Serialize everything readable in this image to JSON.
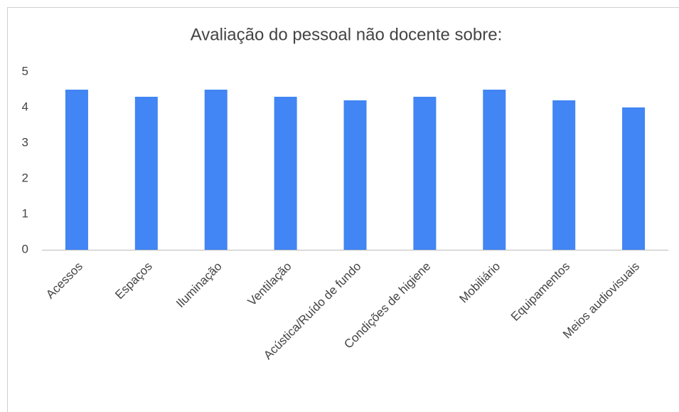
{
  "chart_data": {
    "type": "bar",
    "title": "Avaliação do pessoal não docente sobre:",
    "categories": [
      "Acessos",
      "Espaços",
      "Iluminação",
      "Ventilação",
      "Acústica/Ruído de fundo",
      "Condições de higiene",
      "Mobiliário",
      "Equipamentos",
      "Meios audiovisuais"
    ],
    "values": [
      4.5,
      4.3,
      4.5,
      4.3,
      4.2,
      4.3,
      4.5,
      4.2,
      4.0
    ],
    "color": "#4285f4",
    "ylim": [
      0,
      5
    ],
    "yticks": [
      0,
      1,
      2,
      3,
      4,
      5
    ],
    "grid": false
  }
}
